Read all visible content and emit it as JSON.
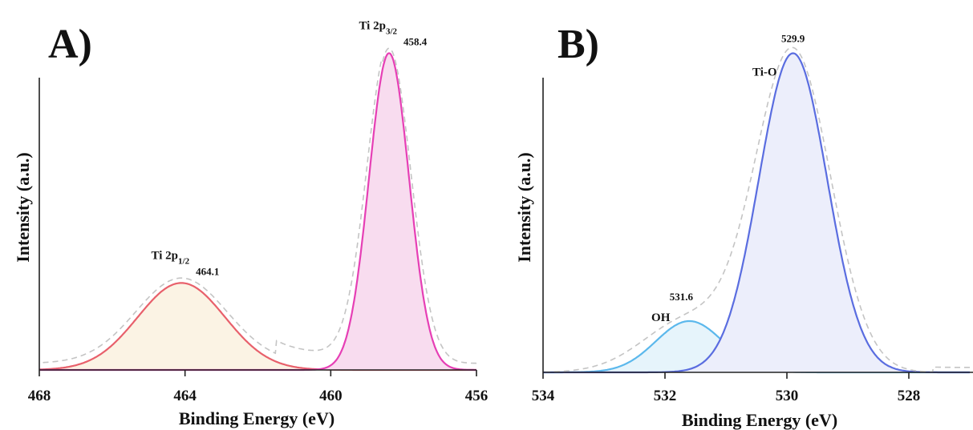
{
  "chart_data": [
    {
      "type": "line",
      "panel": "A)",
      "xlabel": "Binding Energy (eV)",
      "ylabel": "Intensity (a.u.)",
      "xlim": [
        468,
        456
      ],
      "x_reversed": true,
      "ylim": [
        0,
        1.0
      ],
      "xticks": [
        468,
        464,
        460,
        456
      ],
      "grid": false,
      "series": [
        {
          "kind": "envelope",
          "color": "#c4c4c4",
          "dashed": true,
          "baseline": 0.02,
          "peaks": [
            {
              "center": 464.1,
              "height": 0.26,
              "width": 1.25
            },
            {
              "center": 458.4,
              "height": 0.96,
              "width": 0.6
            }
          ],
          "shoulder": {
            "from": 461.5,
            "height": 0.04
          }
        },
        {
          "kind": "component",
          "label_name": "Ti 2p",
          "label_sub": "1/2",
          "value": "464.1",
          "center": 464.1,
          "height": 0.265,
          "width": 1.2,
          "color": "#e8606b",
          "fill": "#fbf3e4"
        },
        {
          "kind": "component",
          "label_name": "Ti 2p",
          "label_sub": "3/2",
          "value": "458.4",
          "center": 458.4,
          "height": 0.965,
          "width": 0.55,
          "color": "#e63fb5",
          "fill": "#f8dcef"
        }
      ]
    },
    {
      "type": "line",
      "panel": "B)",
      "xlabel": "Binding Energy (eV)",
      "ylabel": "Intensity (a.u.)",
      "xlim": [
        534,
        527
      ],
      "x_reversed": true,
      "ylim": [
        0,
        1.0
      ],
      "xticks": [
        534,
        532,
        530,
        528
      ],
      "grid": false,
      "series": [
        {
          "kind": "envelope",
          "color": "#c4c4c4",
          "dashed": true,
          "baseline": 0.0,
          "peaks": [
            {
              "center": 531.6,
              "height": 0.16,
              "width": 0.75
            },
            {
              "center": 529.9,
              "height": 0.97,
              "width": 0.62
            }
          ],
          "tail": {
            "from": 534,
            "height": 0.02
          }
        },
        {
          "kind": "component",
          "label_name": "OH",
          "label_sub": "",
          "value": "531.6",
          "center": 531.6,
          "height": 0.155,
          "width": 0.55,
          "color": "#5bb8ec",
          "fill": "#e6f4fb"
        },
        {
          "kind": "component",
          "label_name": "Ti-O",
          "label_sub": "",
          "value": "529.9",
          "center": 529.9,
          "height": 0.965,
          "width": 0.56,
          "color": "#5a6de0",
          "fill": "#eceefb"
        }
      ]
    }
  ]
}
